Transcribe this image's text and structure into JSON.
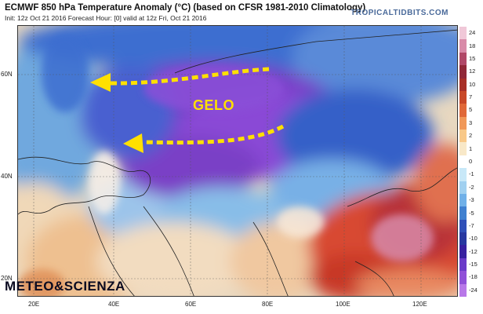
{
  "header": {
    "title": "ECMWF 850 hPa Temperature Anomaly (°C) (based on CFSR 1981-2010 Climatology)",
    "subtitle": "Init: 12z Oct 21 2016   Forecast Hour: [0]   valid at 12z Fri, Oct 21 2016",
    "brand": "TROPICALTIDBITS.COM"
  },
  "map": {
    "annotation": "GELO",
    "watermark": "METEO&SCIENZA",
    "lat_labels": [
      "60N",
      "40N",
      "20N"
    ],
    "lon_labels": [
      "20E",
      "40E",
      "60E",
      "80E",
      "100E",
      "120E"
    ]
  },
  "colorbar": {
    "labels": [
      "24",
      "18",
      "15",
      "12",
      "10",
      "7",
      "5",
      "3",
      "2",
      "1",
      "0",
      "-1",
      "-2",
      "-3",
      "-5",
      "-7",
      "-10",
      "-12",
      "-15",
      "-18",
      "-24"
    ],
    "colors": [
      "#f0c8d8",
      "#d88aa8",
      "#b04868",
      "#902838",
      "#a83028",
      "#c84828",
      "#e06838",
      "#f09858",
      "#f8c888",
      "#f8e8c8",
      "#ffffff",
      "#c8e8f8",
      "#a0d0f0",
      "#70b0e8",
      "#4080d0",
      "#3050b8",
      "#2838a0",
      "#3820a0",
      "#6a3ac8",
      "#9050d8",
      "#b878e8"
    ],
    "colors_note_scale": "anomaly °C"
  }
}
